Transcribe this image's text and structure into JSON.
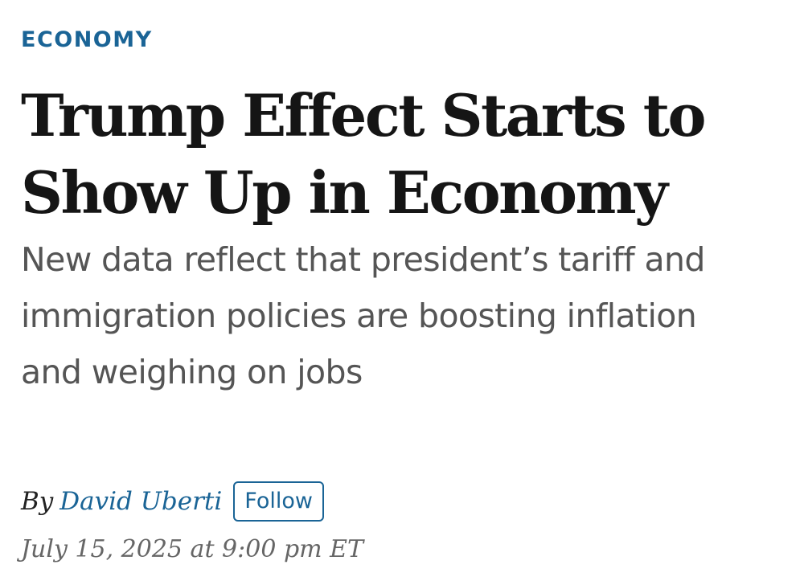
{
  "article": {
    "section": "ECONOMY",
    "headline": {
      "line1": "Trump Effect Starts to",
      "line2": "Show Up in Economy"
    },
    "dek": {
      "line1": "New data reflect that president’s tariff and",
      "line2": "immigration policies are boosting inflation",
      "line3": "and weighing on jobs"
    },
    "byline": {
      "prefix": "By",
      "author": "David Uberti",
      "follow_label": "Follow"
    },
    "timestamp": "July 15, 2025 at 9:00 pm ET"
  },
  "colors": {
    "accent": "#1a6496",
    "headline": "#151515",
    "dek": "#555555",
    "timestamp": "#666666"
  }
}
